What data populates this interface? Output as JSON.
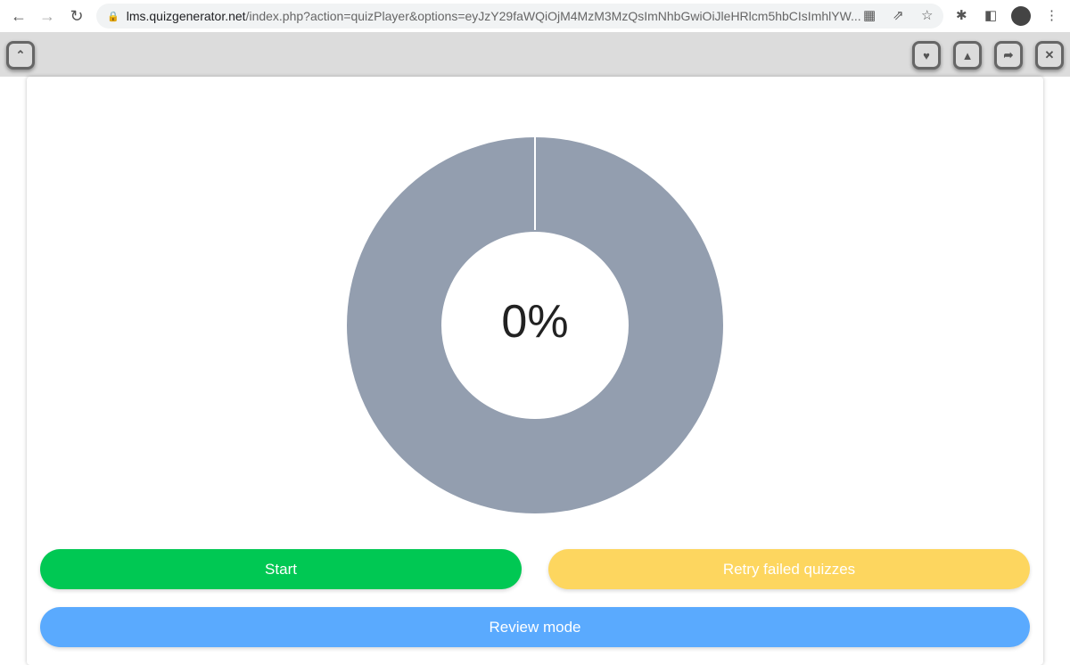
{
  "browser": {
    "url_host": "lms.quizgenerator.net",
    "url_rest": "/index.php?action=quizPlayer&options=eyJzY29faWQiOjM4MzM3MzQsImNhbGwiOiJleHRlcm5hbCIsImhlYW..."
  },
  "toolbar": {
    "collapse_icon": "double-chevron-up",
    "right_icons": [
      "heart",
      "warning",
      "share",
      "close"
    ]
  },
  "progress": {
    "label": "0%",
    "value": 0,
    "colors": {
      "remaining": "#939eaf",
      "complete": "#00c853"
    }
  },
  "buttons": {
    "start": "Start",
    "retry": "Retry failed quizzes",
    "review": "Review mode"
  },
  "colors": {
    "start": "#00c853",
    "retry": "#fdd65f",
    "review": "#5aaafe"
  }
}
